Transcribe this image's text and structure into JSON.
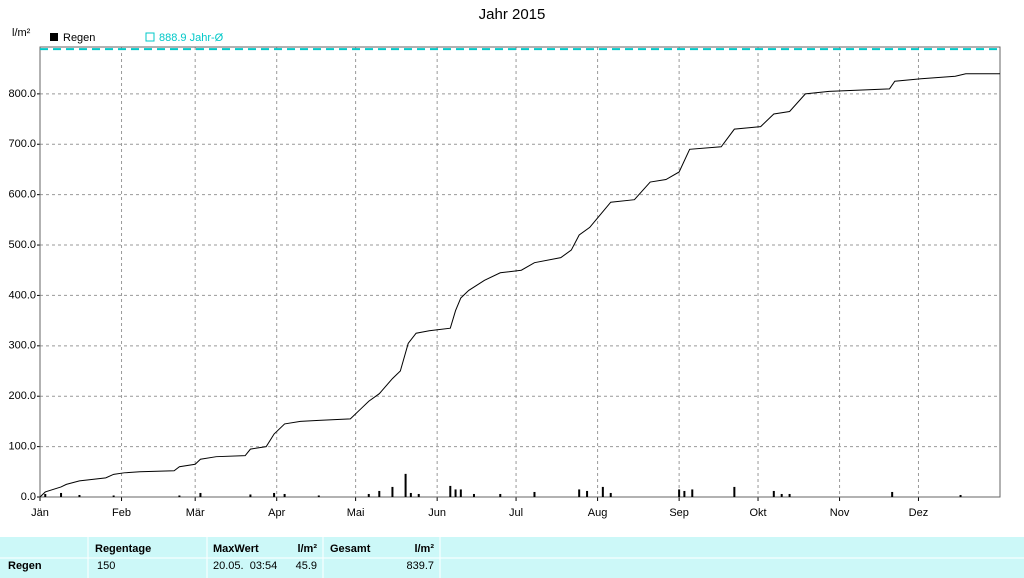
{
  "chart_data": {
    "type": "bar-line",
    "title": "Jahr 2015",
    "y_label": "l/m²",
    "xlim": [
      0,
      365
    ],
    "xticks": [
      {
        "value": 0,
        "label": "Jän"
      },
      {
        "value": 31,
        "label": "Feb"
      },
      {
        "value": 59,
        "label": "Mär"
      },
      {
        "value": 90,
        "label": "Apr"
      },
      {
        "value": 120,
        "label": "Mai"
      },
      {
        "value": 151,
        "label": "Jun"
      },
      {
        "value": 181,
        "label": "Jul"
      },
      {
        "value": 212,
        "label": "Aug"
      },
      {
        "value": 243,
        "label": "Sep"
      },
      {
        "value": 273,
        "label": "Okt"
      },
      {
        "value": 304,
        "label": "Nov"
      },
      {
        "value": 334,
        "label": "Dez"
      }
    ],
    "ylim": [
      0,
      893
    ],
    "yticks": [
      {
        "value": 0,
        "label": "0.0"
      },
      {
        "value": 100,
        "label": "100.0"
      },
      {
        "value": 200,
        "label": "200.0"
      },
      {
        "value": 300,
        "label": "300.0"
      },
      {
        "value": 400,
        "label": "400.0"
      },
      {
        "value": 500,
        "label": "500.0"
      },
      {
        "value": 600,
        "label": "600.0"
      },
      {
        "value": 700,
        "label": "700.0"
      },
      {
        "value": 800,
        "label": "800.0"
      }
    ],
    "grid": true,
    "bars": {
      "name": "Regen",
      "color": "#000000",
      "x": [
        2,
        8,
        15,
        28,
        53,
        61,
        80,
        89,
        93,
        106,
        125,
        129,
        134,
        139,
        141,
        144,
        156,
        158,
        160,
        165,
        175,
        188,
        205,
        208,
        214,
        217,
        243,
        245,
        248,
        264,
        279,
        282,
        285,
        324,
        350
      ],
      "values": [
        6,
        8,
        4,
        3,
        3,
        8,
        5,
        8,
        6,
        3,
        6,
        12,
        20,
        45.9,
        8,
        6,
        22,
        15,
        15,
        6,
        6,
        10,
        15,
        12,
        20,
        8,
        15,
        12,
        15,
        20,
        12,
        6,
        6,
        10,
        4
      ]
    },
    "line": {
      "color": "#000000",
      "x": [
        0,
        2,
        8,
        10,
        15,
        25,
        28,
        32,
        38,
        51,
        53,
        59,
        61,
        67,
        78,
        80,
        86,
        89,
        93,
        99,
        106,
        118,
        122,
        125,
        129,
        134,
        137,
        140,
        143,
        148,
        156,
        158,
        160,
        163,
        169,
        175,
        183,
        188,
        198,
        202,
        205,
        209,
        213,
        217,
        226,
        232,
        238,
        243,
        247,
        259,
        264,
        274,
        279,
        285,
        291,
        300,
        323,
        325,
        335,
        348,
        352,
        365
      ],
      "values": [
        0,
        10,
        20,
        25,
        32,
        38,
        45,
        48,
        50,
        52,
        60,
        65,
        75,
        80,
        82,
        95,
        100,
        125,
        145,
        150,
        152,
        155,
        175,
        190,
        205,
        235,
        250,
        305,
        325,
        330,
        335,
        370,
        395,
        410,
        430,
        445,
        450,
        465,
        475,
        490,
        520,
        535,
        560,
        585,
        590,
        625,
        630,
        645,
        690,
        695,
        730,
        735,
        760,
        765,
        800,
        805,
        810,
        825,
        830,
        835,
        840,
        840
      ]
    },
    "reference": {
      "value": 888.9,
      "label": "888.9 Jahr-Ø",
      "color": "#00c8c8"
    }
  },
  "table": {
    "header": [
      "Regentage",
      "MaxWert",
      "l/m²",
      "Gesamt",
      "l/m²"
    ],
    "rows": [
      [
        "Regen",
        "150",
        "20.05.  03:54",
        "45.9",
        "839.7"
      ]
    ]
  }
}
